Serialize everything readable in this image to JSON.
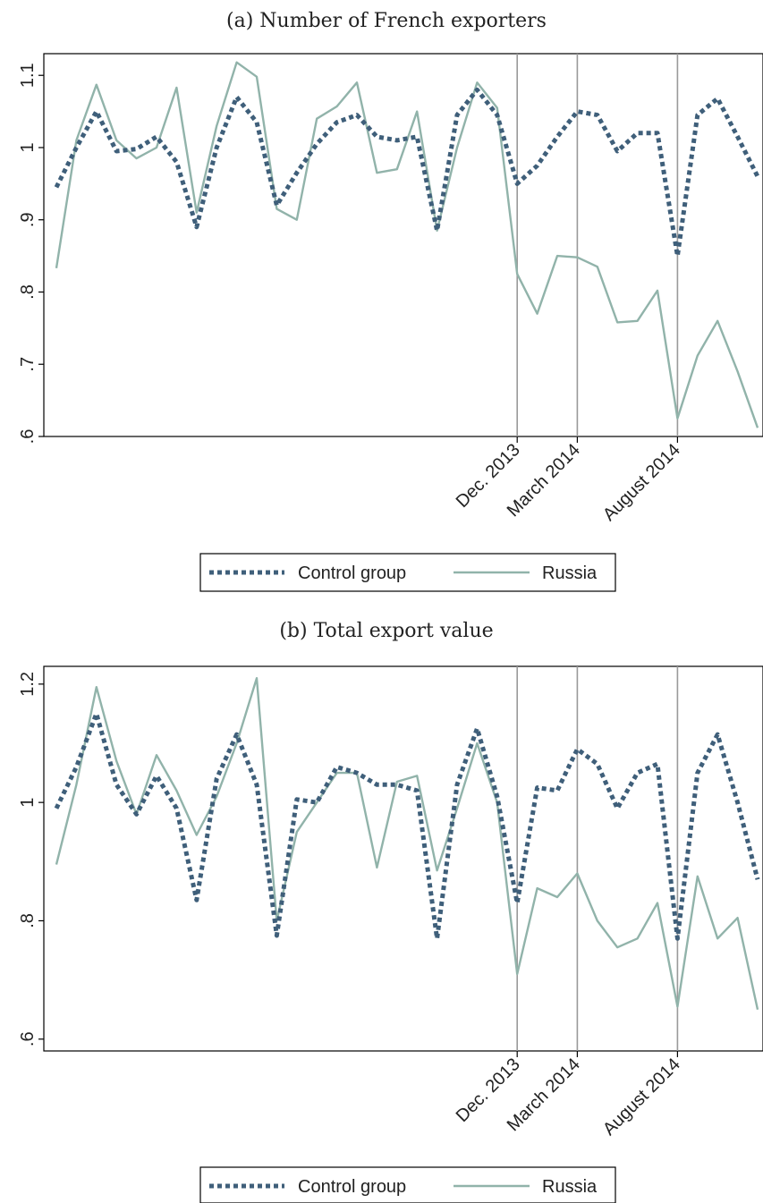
{
  "chart_data": [
    {
      "type": "line",
      "title": "(a) Number of French exporters",
      "xlabel": "",
      "ylabel": "",
      "x": [
        1,
        2,
        3,
        4,
        5,
        6,
        7,
        8,
        9,
        10,
        11,
        12,
        13,
        14,
        15,
        16,
        17,
        18,
        19,
        20,
        21,
        22,
        23,
        24,
        25,
        26,
        27,
        28,
        29,
        30,
        31,
        32,
        33,
        34,
        35,
        36
      ],
      "ylim": [
        0.6,
        1.13
      ],
      "yticks": [
        0.6,
        0.7,
        0.8,
        0.9,
        1.0,
        1.1
      ],
      "ytick_labels": [
        ".6",
        ".7",
        ".8",
        ".9",
        "1",
        "1.1"
      ],
      "xticks": [
        {
          "x": 24,
          "label": "Dec. 2013"
        },
        {
          "x": 27,
          "label": "March 2014"
        },
        {
          "x": 32,
          "label": "August 2014"
        }
      ],
      "vlines": [
        24,
        27,
        32
      ],
      "series": [
        {
          "name": "Control group",
          "color": "#3f5f7a",
          "style": "dotted",
          "values": [
            0.945,
            1.0,
            1.05,
            0.995,
            0.998,
            1.015,
            0.98,
            0.89,
            1.0,
            1.07,
            1.035,
            0.92,
            0.965,
            1.005,
            1.035,
            1.045,
            1.015,
            1.01,
            1.015,
            0.885,
            1.045,
            1.08,
            1.045,
            0.95,
            0.975,
            1.015,
            1.05,
            1.045,
            0.995,
            1.02,
            1.02,
            0.85,
            1.045,
            1.068,
            1.015,
            0.96
          ]
        },
        {
          "name": "Russia",
          "color": "#91b3aa",
          "style": "solid",
          "values": [
            0.833,
            1.01,
            1.087,
            1.01,
            0.985,
            1.0,
            1.083,
            0.91,
            1.03,
            1.118,
            1.098,
            0.915,
            0.9,
            1.04,
            1.057,
            1.09,
            0.965,
            0.97,
            1.05,
            0.885,
            1.0,
            1.09,
            1.055,
            0.825,
            0.77,
            0.85,
            0.848,
            0.835,
            0.758,
            0.76,
            0.802,
            0.625,
            0.712,
            0.76,
            0.69,
            0.612
          ]
        }
      ],
      "legend": {
        "position": "bottom"
      }
    },
    {
      "type": "line",
      "title": "(b) Total export value",
      "xlabel": "",
      "ylabel": "",
      "x": [
        1,
        2,
        3,
        4,
        5,
        6,
        7,
        8,
        9,
        10,
        11,
        12,
        13,
        14,
        15,
        16,
        17,
        18,
        19,
        20,
        21,
        22,
        23,
        24,
        25,
        26,
        27,
        28,
        29,
        30,
        31,
        32,
        33,
        34,
        35,
        36
      ],
      "ylim": [
        0.58,
        1.23
      ],
      "yticks": [
        0.6,
        0.8,
        1.0,
        1.2
      ],
      "ytick_labels": [
        ".6",
        ".8",
        "1",
        "1.2"
      ],
      "xticks": [
        {
          "x": 24,
          "label": "Dec. 2013"
        },
        {
          "x": 27,
          "label": "March 2014"
        },
        {
          "x": 32,
          "label": "August 2014"
        }
      ],
      "vlines": [
        24,
        27,
        32
      ],
      "series": [
        {
          "name": "Control group",
          "color": "#3f5f7a",
          "style": "dotted",
          "values": [
            0.99,
            1.06,
            1.15,
            1.03,
            0.98,
            1.045,
            0.99,
            0.835,
            1.04,
            1.115,
            1.03,
            0.775,
            1.005,
            1.0,
            1.06,
            1.05,
            1.03,
            1.03,
            1.02,
            0.77,
            1.03,
            1.125,
            1.01,
            0.83,
            1.025,
            1.02,
            1.09,
            1.065,
            0.99,
            1.05,
            1.065,
            0.77,
            1.05,
            1.115,
            1.0,
            0.87
          ]
        },
        {
          "name": "Russia",
          "color": "#91b3aa",
          "style": "solid",
          "values": [
            0.895,
            1.03,
            1.195,
            1.07,
            0.98,
            1.08,
            1.02,
            0.945,
            1.01,
            1.1,
            1.21,
            0.8,
            0.95,
            1.0,
            1.05,
            1.05,
            0.89,
            1.035,
            1.045,
            0.885,
            0.99,
            1.1,
            1.0,
            0.71,
            0.855,
            0.84,
            0.88,
            0.8,
            0.755,
            0.77,
            0.83,
            0.655,
            0.875,
            0.77,
            0.805,
            0.65
          ]
        }
      ],
      "legend": {
        "position": "bottom"
      }
    }
  ]
}
